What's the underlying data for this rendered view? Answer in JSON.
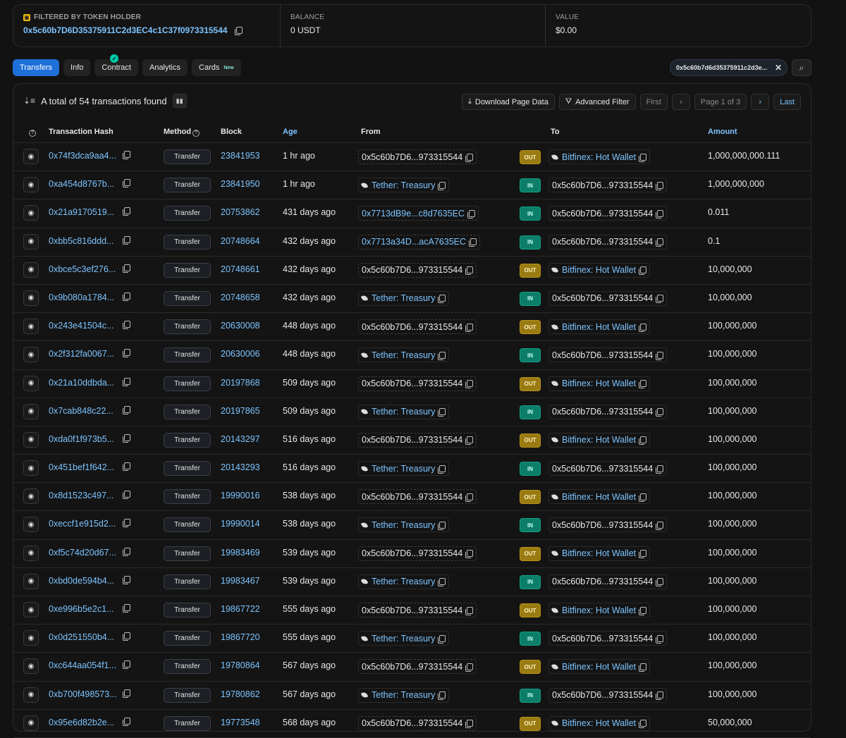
{
  "summary": {
    "filter_label": "FILTERED BY TOKEN HOLDER",
    "holder_address": "0x5c60b7D6D35375911C2d3EC4c1C37f0973315544",
    "balance_label": "BALANCE",
    "balance_value": "0 USDT",
    "value_label": "VALUE",
    "value_value": "$0.00"
  },
  "tabs": [
    {
      "label": "Transfers"
    },
    {
      "label": "Info"
    },
    {
      "label": "Contract"
    },
    {
      "label": "Analytics"
    },
    {
      "label": "Cards",
      "badge": "New"
    }
  ],
  "address_filter": "0x5c60b7d6d35375911c2d3e...",
  "toolbar": {
    "total_text": "A total of 54 transactions found",
    "download": "Download Page Data",
    "advanced_filter": "Advanced Filter",
    "first": "First",
    "page": "Page 1 of 3",
    "last": "Last"
  },
  "columns": {
    "hash": "Transaction Hash",
    "method": "Method",
    "block": "Block",
    "age": "Age",
    "from": "From",
    "to": "To",
    "amount": "Amount"
  },
  "rows": [
    {
      "hash": "0x74f3dca9aa4...",
      "method": "Transfer",
      "block": "23841953",
      "age": "1 hr ago",
      "from": "0x5c60b7D6...973315544",
      "from_type": "addr",
      "dir": "OUT",
      "to": "Bitfinex: Hot Wallet",
      "to_type": "named",
      "amount": "1,000,000,000.111"
    },
    {
      "hash": "0xa454d8767b...",
      "method": "Transfer",
      "block": "23841950",
      "age": "1 hr ago",
      "from": "Tether: Treasury",
      "from_type": "named",
      "dir": "IN",
      "to": "0x5c60b7D6...973315544",
      "to_type": "addr",
      "amount": "1,000,000,000"
    },
    {
      "hash": "0x21a9170519...",
      "method": "Transfer",
      "block": "20753862",
      "age": "431 days ago",
      "from": "0x7713dB9e...c8d7635EC",
      "from_type": "link",
      "dir": "IN",
      "to": "0x5c60b7D6...973315544",
      "to_type": "addr",
      "amount": "0.011"
    },
    {
      "hash": "0xbb5c816ddd...",
      "method": "Transfer",
      "block": "20748664",
      "age": "432 days ago",
      "from": "0x7713a34D...acA7635EC",
      "from_type": "link",
      "dir": "IN",
      "to": "0x5c60b7D6...973315544",
      "to_type": "addr",
      "amount": "0.1"
    },
    {
      "hash": "0xbce5c3ef276...",
      "method": "Transfer",
      "block": "20748661",
      "age": "432 days ago",
      "from": "0x5c60b7D6...973315544",
      "from_type": "addr",
      "dir": "OUT",
      "to": "Bitfinex: Hot Wallet",
      "to_type": "named",
      "amount": "10,000,000"
    },
    {
      "hash": "0x9b080a1784...",
      "method": "Transfer",
      "block": "20748658",
      "age": "432 days ago",
      "from": "Tether: Treasury",
      "from_type": "named",
      "dir": "IN",
      "to": "0x5c60b7D6...973315544",
      "to_type": "addr",
      "amount": "10,000,000"
    },
    {
      "hash": "0x243e41504c...",
      "method": "Transfer",
      "block": "20630008",
      "age": "448 days ago",
      "from": "0x5c60b7D6...973315544",
      "from_type": "addr",
      "dir": "OUT",
      "to": "Bitfinex: Hot Wallet",
      "to_type": "named",
      "amount": "100,000,000"
    },
    {
      "hash": "0x2f312fa0067...",
      "method": "Transfer",
      "block": "20630006",
      "age": "448 days ago",
      "from": "Tether: Treasury",
      "from_type": "named",
      "dir": "IN",
      "to": "0x5c60b7D6...973315544",
      "to_type": "addr",
      "amount": "100,000,000"
    },
    {
      "hash": "0x21a10ddbda...",
      "method": "Transfer",
      "block": "20197868",
      "age": "509 days ago",
      "from": "0x5c60b7D6...973315544",
      "from_type": "addr",
      "dir": "OUT",
      "to": "Bitfinex: Hot Wallet",
      "to_type": "named",
      "amount": "100,000,000"
    },
    {
      "hash": "0x7cab848c22...",
      "method": "Transfer",
      "block": "20197865",
      "age": "509 days ago",
      "from": "Tether: Treasury",
      "from_type": "named",
      "dir": "IN",
      "to": "0x5c60b7D6...973315544",
      "to_type": "addr",
      "amount": "100,000,000"
    },
    {
      "hash": "0xda0f1f973b5...",
      "method": "Transfer",
      "block": "20143297",
      "age": "516 days ago",
      "from": "0x5c60b7D6...973315544",
      "from_type": "addr",
      "dir": "OUT",
      "to": "Bitfinex: Hot Wallet",
      "to_type": "named",
      "amount": "100,000,000"
    },
    {
      "hash": "0x451bef1f642...",
      "method": "Transfer",
      "block": "20143293",
      "age": "516 days ago",
      "from": "Tether: Treasury",
      "from_type": "named",
      "dir": "IN",
      "to": "0x5c60b7D6...973315544",
      "to_type": "addr",
      "amount": "100,000,000"
    },
    {
      "hash": "0x8d1523c497...",
      "method": "Transfer",
      "block": "19990016",
      "age": "538 days ago",
      "from": "0x5c60b7D6...973315544",
      "from_type": "addr",
      "dir": "OUT",
      "to": "Bitfinex: Hot Wallet",
      "to_type": "named",
      "amount": "100,000,000"
    },
    {
      "hash": "0xeccf1e915d2...",
      "method": "Transfer",
      "block": "19990014",
      "age": "538 days ago",
      "from": "Tether: Treasury",
      "from_type": "named",
      "dir": "IN",
      "to": "0x5c60b7D6...973315544",
      "to_type": "addr",
      "amount": "100,000,000"
    },
    {
      "hash": "0xf5c74d20d67...",
      "method": "Transfer",
      "block": "19983469",
      "age": "539 days ago",
      "from": "0x5c60b7D6...973315544",
      "from_type": "addr",
      "dir": "OUT",
      "to": "Bitfinex: Hot Wallet",
      "to_type": "named",
      "amount": "100,000,000"
    },
    {
      "hash": "0xbd0de594b4...",
      "method": "Transfer",
      "block": "19983467",
      "age": "539 days ago",
      "from": "Tether: Treasury",
      "from_type": "named",
      "dir": "IN",
      "to": "0x5c60b7D6...973315544",
      "to_type": "addr",
      "amount": "100,000,000"
    },
    {
      "hash": "0xe996b5e2c1...",
      "method": "Transfer",
      "block": "19867722",
      "age": "555 days ago",
      "from": "0x5c60b7D6...973315544",
      "from_type": "addr",
      "dir": "OUT",
      "to": "Bitfinex: Hot Wallet",
      "to_type": "named",
      "amount": "100,000,000"
    },
    {
      "hash": "0x0d251550b4...",
      "method": "Transfer",
      "block": "19867720",
      "age": "555 days ago",
      "from": "Tether: Treasury",
      "from_type": "named",
      "dir": "IN",
      "to": "0x5c60b7D6...973315544",
      "to_type": "addr",
      "amount": "100,000,000"
    },
    {
      "hash": "0xc644aa054f1...",
      "method": "Transfer",
      "block": "19780864",
      "age": "567 days ago",
      "from": "0x5c60b7D6...973315544",
      "from_type": "addr",
      "dir": "OUT",
      "to": "Bitfinex: Hot Wallet",
      "to_type": "named",
      "amount": "100,000,000"
    },
    {
      "hash": "0xb700f498573...",
      "method": "Transfer",
      "block": "19780862",
      "age": "567 days ago",
      "from": "Tether: Treasury",
      "from_type": "named",
      "dir": "IN",
      "to": "0x5c60b7D6...973315544",
      "to_type": "addr",
      "amount": "100,000,000"
    },
    {
      "hash": "0x95e6d82b2e...",
      "method": "Transfer",
      "block": "19773548",
      "age": "568 days ago",
      "from": "0x5c60b7D6...973315544",
      "from_type": "addr",
      "dir": "OUT",
      "to": "Bitfinex: Hot Wallet",
      "to_type": "named",
      "amount": "50,000,000"
    }
  ]
}
